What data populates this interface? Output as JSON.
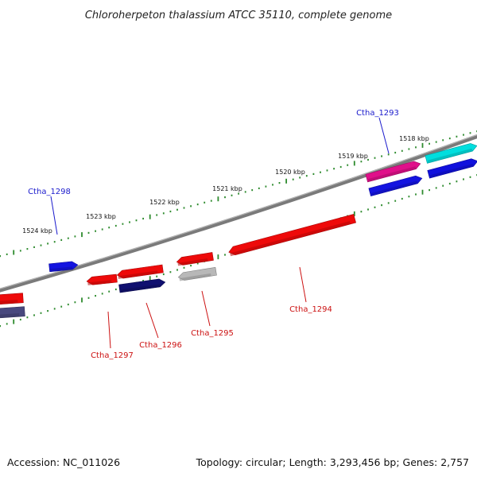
{
  "header": {
    "title": "Chloroherpeton thalassium ATCC 35110, complete genome"
  },
  "footer": {
    "accession": "Accession: NC_011026",
    "summary": "Topology: circular; Length: 3,293,456 bp; Genes: 2,757"
  },
  "colors": {
    "backbone": "#7a7a7a",
    "tick": "#2e8b2e",
    "label_forward": "#1a1acc",
    "label_reverse": "#cc1111"
  },
  "scale": {
    "ticks": [
      {
        "label": "1518 kbp"
      },
      {
        "label": "1519 kbp"
      },
      {
        "label": "1520 kbp"
      },
      {
        "label": "1521 kbp"
      },
      {
        "label": "1522 kbp"
      },
      {
        "label": "1523 kbp"
      },
      {
        "label": "1524 kbp"
      }
    ]
  },
  "genes": [
    {
      "name": "forward-gene-cyan",
      "color": "#00dede"
    },
    {
      "name": "forward-gene-blue-far-right",
      "color": "#1010dd"
    },
    {
      "name": "forward-gene-magenta",
      "color": "#e0108a"
    },
    {
      "name": "forward-gene-blue",
      "color": "#1414e0"
    },
    {
      "name": "forward-gene-cds-1298",
      "color": "#1414e0"
    },
    {
      "name": "reverse-gene-cds-1294",
      "color": "#ee0a0a"
    },
    {
      "name": "reverse-gene-cds-1295",
      "color": "#ee0a0a"
    },
    {
      "name": "reverse-gene-grey",
      "color": "#b8b8b8"
    },
    {
      "name": "reverse-gene-cds-1296",
      "color": "#ee0a0a"
    },
    {
      "name": "reverse-gene-navy",
      "color": "#101070"
    },
    {
      "name": "reverse-gene-cds-1297",
      "color": "#ee0a0a"
    },
    {
      "name": "reverse-gene-red-left",
      "color": "#ee0a0a"
    },
    {
      "name": "reverse-gene-slate-left",
      "color": "#48487e"
    }
  ],
  "labels": [
    {
      "text": "Ctha_1293",
      "strand": "forward"
    },
    {
      "text": "Ctha_1298",
      "strand": "forward"
    },
    {
      "text": "Ctha_1294",
      "strand": "reverse"
    },
    {
      "text": "Ctha_1295",
      "strand": "reverse"
    },
    {
      "text": "Ctha_1296",
      "strand": "reverse"
    },
    {
      "text": "Ctha_1297",
      "strand": "reverse"
    }
  ]
}
